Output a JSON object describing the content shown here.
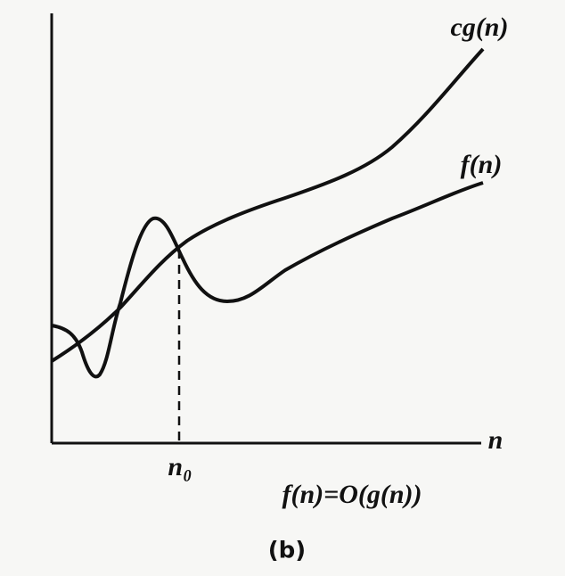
{
  "labels": {
    "cg": "cg(n)",
    "f": "f(n)",
    "x_axis": "n",
    "n0": "n₀",
    "caption": "f(n)=O(g(n))",
    "figure_label": "(b)"
  }
}
